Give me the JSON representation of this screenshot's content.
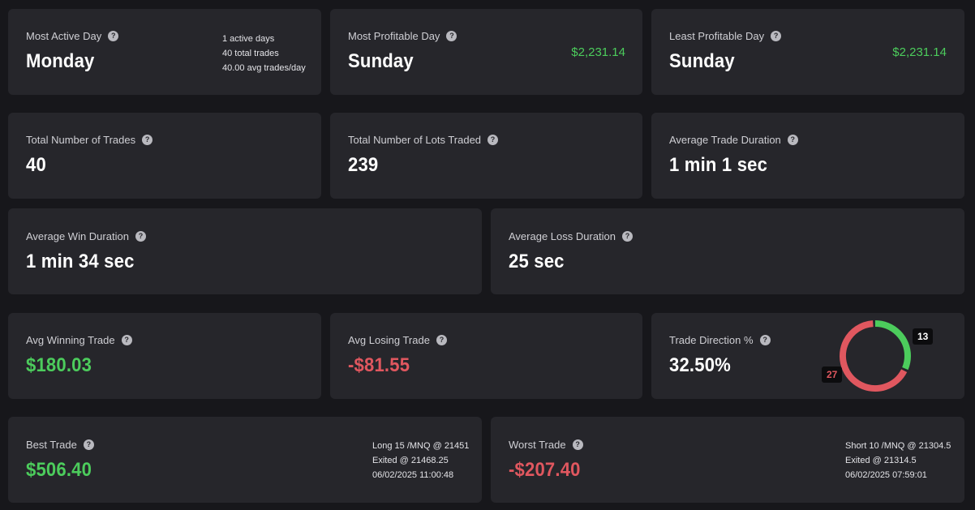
{
  "most_active_day": {
    "label": "Most Active Day",
    "value": "Monday",
    "details": [
      "1 active days",
      "40 total trades",
      "40.00 avg trades/day"
    ]
  },
  "most_profitable_day": {
    "label": "Most Profitable Day",
    "value": "Sunday",
    "amount": "$2,231.14"
  },
  "least_profitable_day": {
    "label": "Least Profitable Day",
    "value": "Sunday",
    "amount": "$2,231.14"
  },
  "total_trades": {
    "label": "Total Number of Trades",
    "value": "40"
  },
  "total_lots": {
    "label": "Total Number of Lots Traded",
    "value": "239"
  },
  "avg_trade_duration": {
    "label": "Average Trade Duration",
    "value": "1 min 1 sec"
  },
  "avg_win_duration": {
    "label": "Average Win Duration",
    "value": "1 min 34 sec"
  },
  "avg_loss_duration": {
    "label": "Average Loss Duration",
    "value": "25 sec"
  },
  "avg_winning_trade": {
    "label": "Avg Winning Trade",
    "value": "$180.03"
  },
  "avg_losing_trade": {
    "label": "Avg Losing Trade",
    "value": "-$81.55"
  },
  "trade_direction": {
    "label": "Trade Direction %",
    "value": "32.50%",
    "long_count": 13,
    "short_count": 27,
    "long_label": "13",
    "short_label": "27",
    "long_color": "#4ccc5c",
    "short_color": "#e0575f"
  },
  "best_trade": {
    "label": "Best Trade",
    "value": "$506.40",
    "details": [
      "Long 15 /MNQ @ 21451",
      "Exited @ 21468.25",
      "06/02/2025 11:00:48"
    ]
  },
  "worst_trade": {
    "label": "Worst Trade",
    "value": "-$207.40",
    "details": [
      "Short 10 /MNQ @ 21304.5",
      "Exited @ 21314.5",
      "06/02/2025 07:59:01"
    ]
  },
  "icons": {
    "help": "question-circle-icon"
  },
  "colors": {
    "positive": "#4ccc5c",
    "negative": "#e0575f"
  }
}
